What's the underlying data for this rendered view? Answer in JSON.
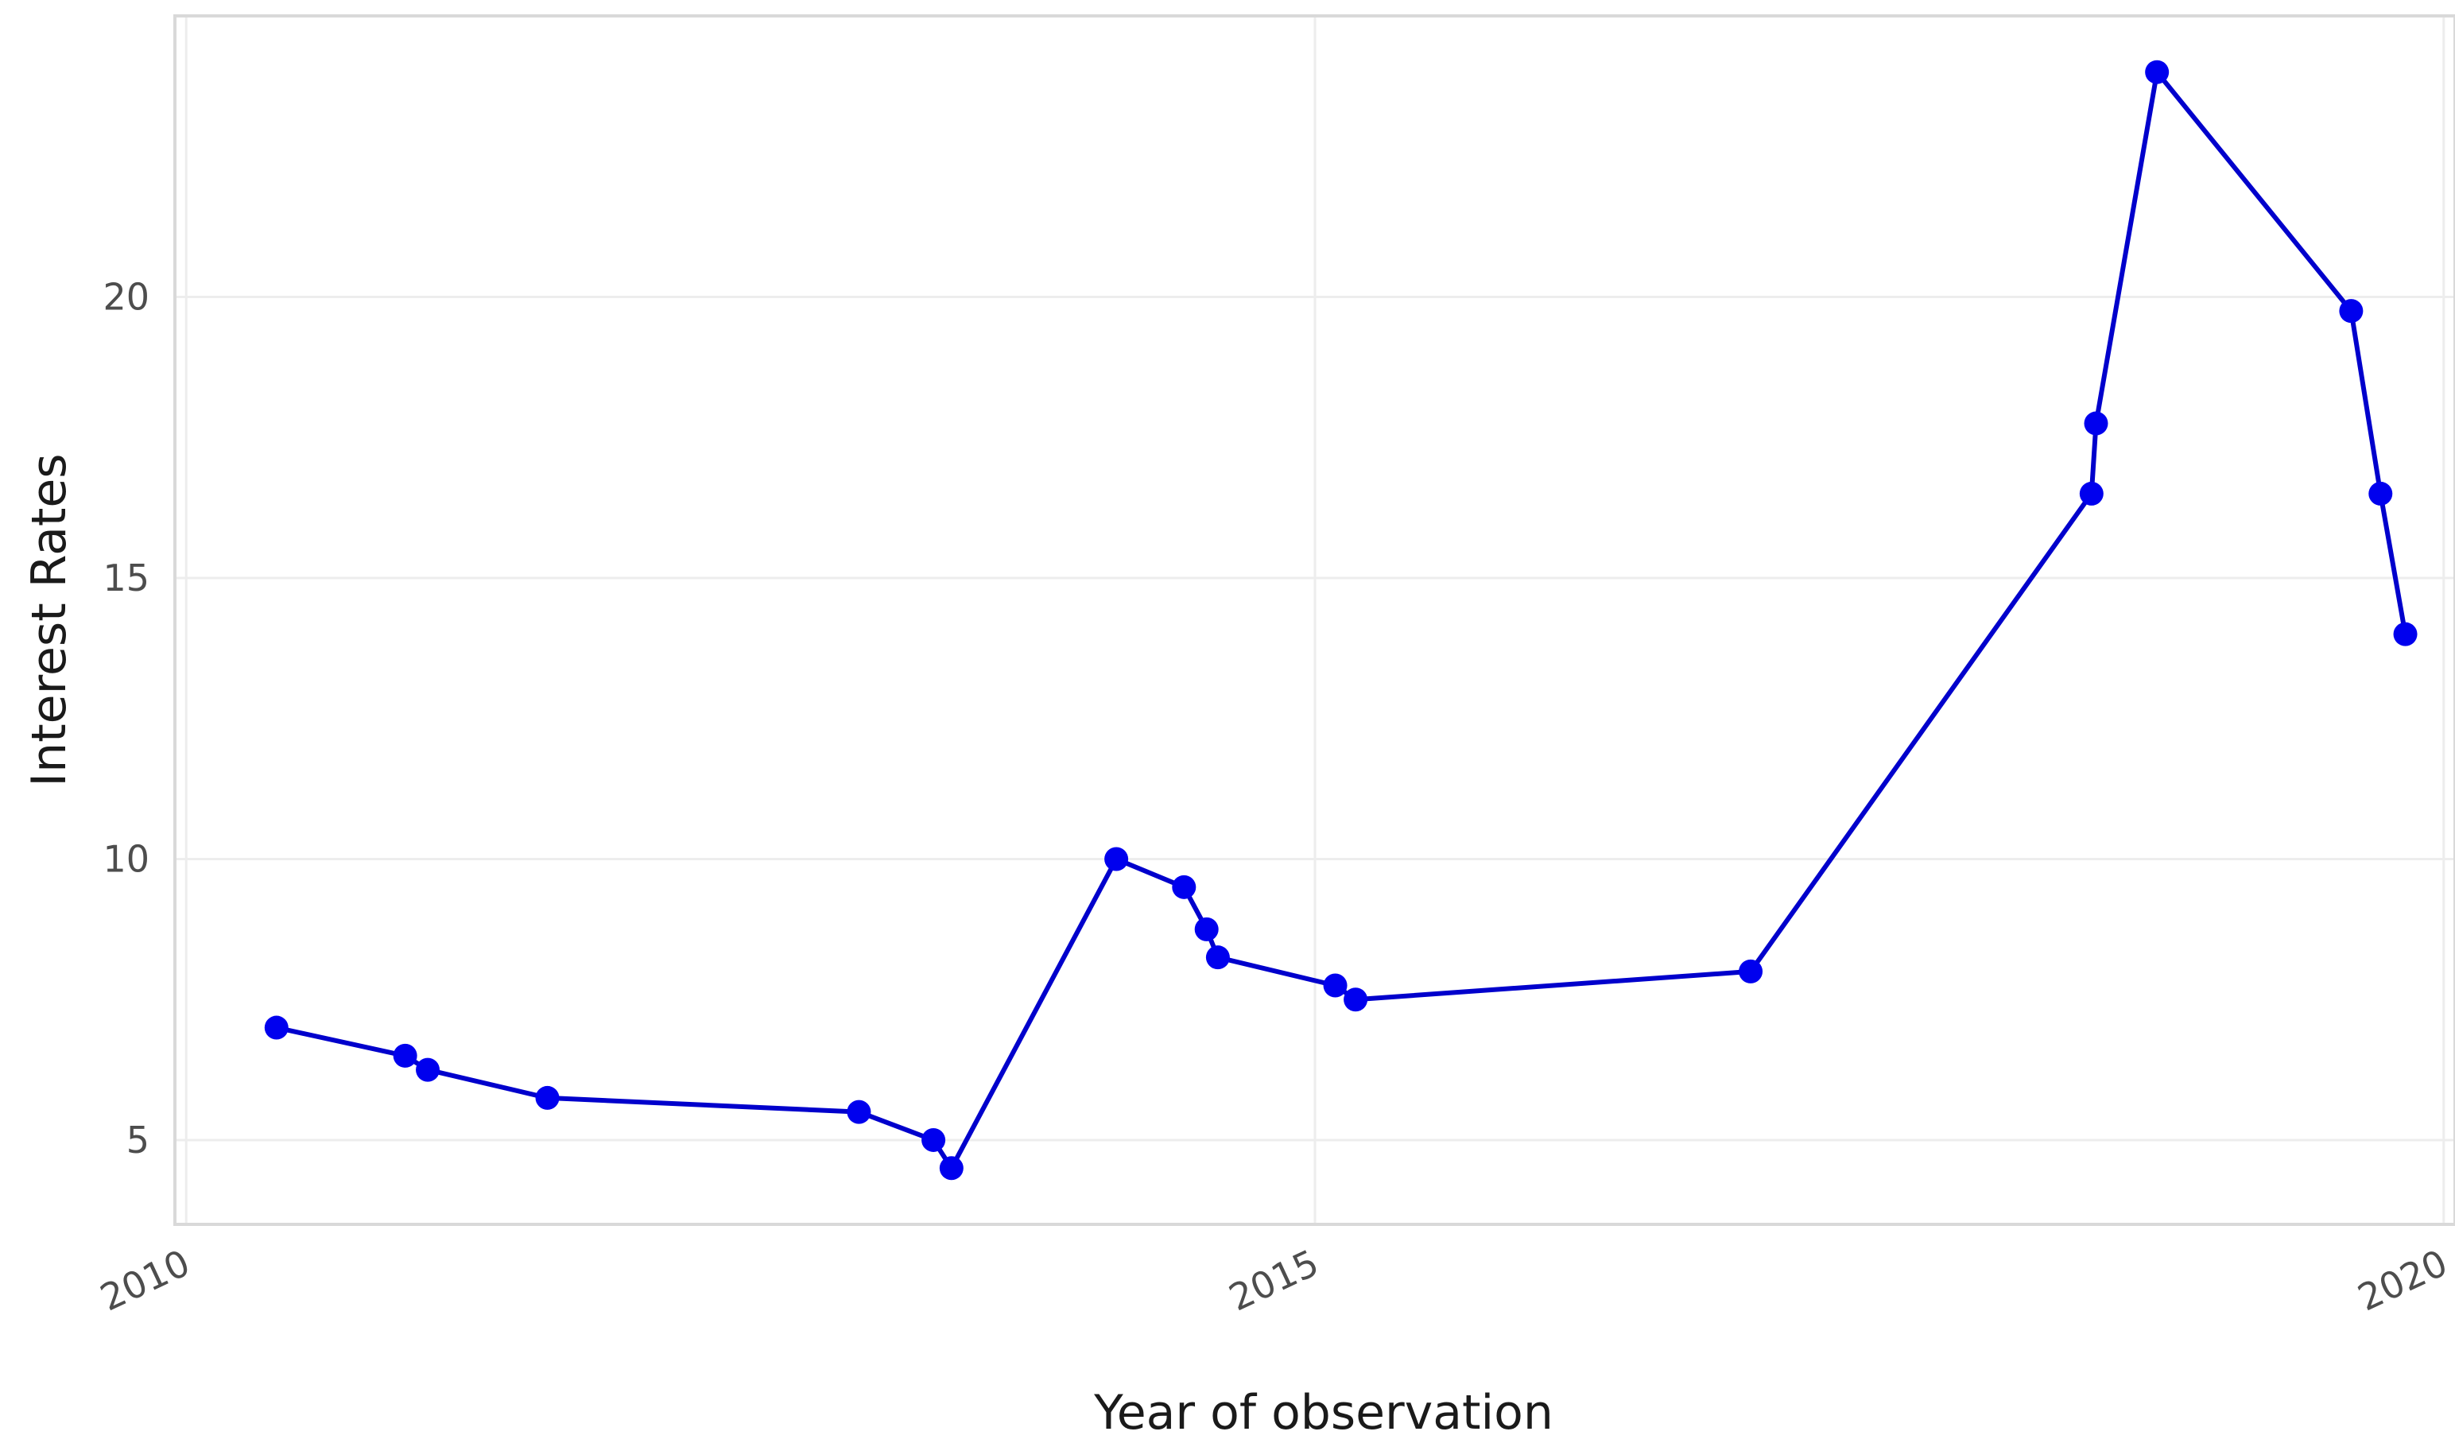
{
  "chart_data": {
    "type": "line",
    "title": "",
    "xlabel": "Year of observation",
    "ylabel": "Interest Rates",
    "xlim": [
      2009.95,
      2020.05
    ],
    "ylim": [
      3.5,
      25.0
    ],
    "x_ticks": [
      2010,
      2015,
      2020
    ],
    "x_tick_labels": [
      "2010",
      "2015",
      "2020"
    ],
    "y_ticks": [
      5,
      10,
      15,
      20
    ],
    "y_tick_labels": [
      "5",
      "10",
      "15",
      "20"
    ],
    "grid": true,
    "legend": "none",
    "series": [
      {
        "color": "#0000cc",
        "marker_color": "#0000ee",
        "markers": true,
        "points": [
          {
            "x": 2010.4,
            "y": 7.0
          },
          {
            "x": 2010.97,
            "y": 6.5
          },
          {
            "x": 2011.07,
            "y": 6.25
          },
          {
            "x": 2011.6,
            "y": 5.75
          },
          {
            "x": 2012.98,
            "y": 5.5
          },
          {
            "x": 2013.31,
            "y": 5.0
          },
          {
            "x": 2013.39,
            "y": 4.5
          },
          {
            "x": 2014.12,
            "y": 10.0
          },
          {
            "x": 2014.42,
            "y": 9.5
          },
          {
            "x": 2014.52,
            "y": 8.75
          },
          {
            "x": 2014.57,
            "y": 8.25
          },
          {
            "x": 2015.09,
            "y": 7.75
          },
          {
            "x": 2015.18,
            "y": 7.5
          },
          {
            "x": 2016.93,
            "y": 8.0
          },
          {
            "x": 2018.44,
            "y": 16.5
          },
          {
            "x": 2018.46,
            "y": 17.75
          },
          {
            "x": 2018.73,
            "y": 24.0
          },
          {
            "x": 2019.59,
            "y": 19.75
          },
          {
            "x": 2019.72,
            "y": 16.5
          },
          {
            "x": 2019.83,
            "y": 14.0
          }
        ]
      }
    ]
  }
}
